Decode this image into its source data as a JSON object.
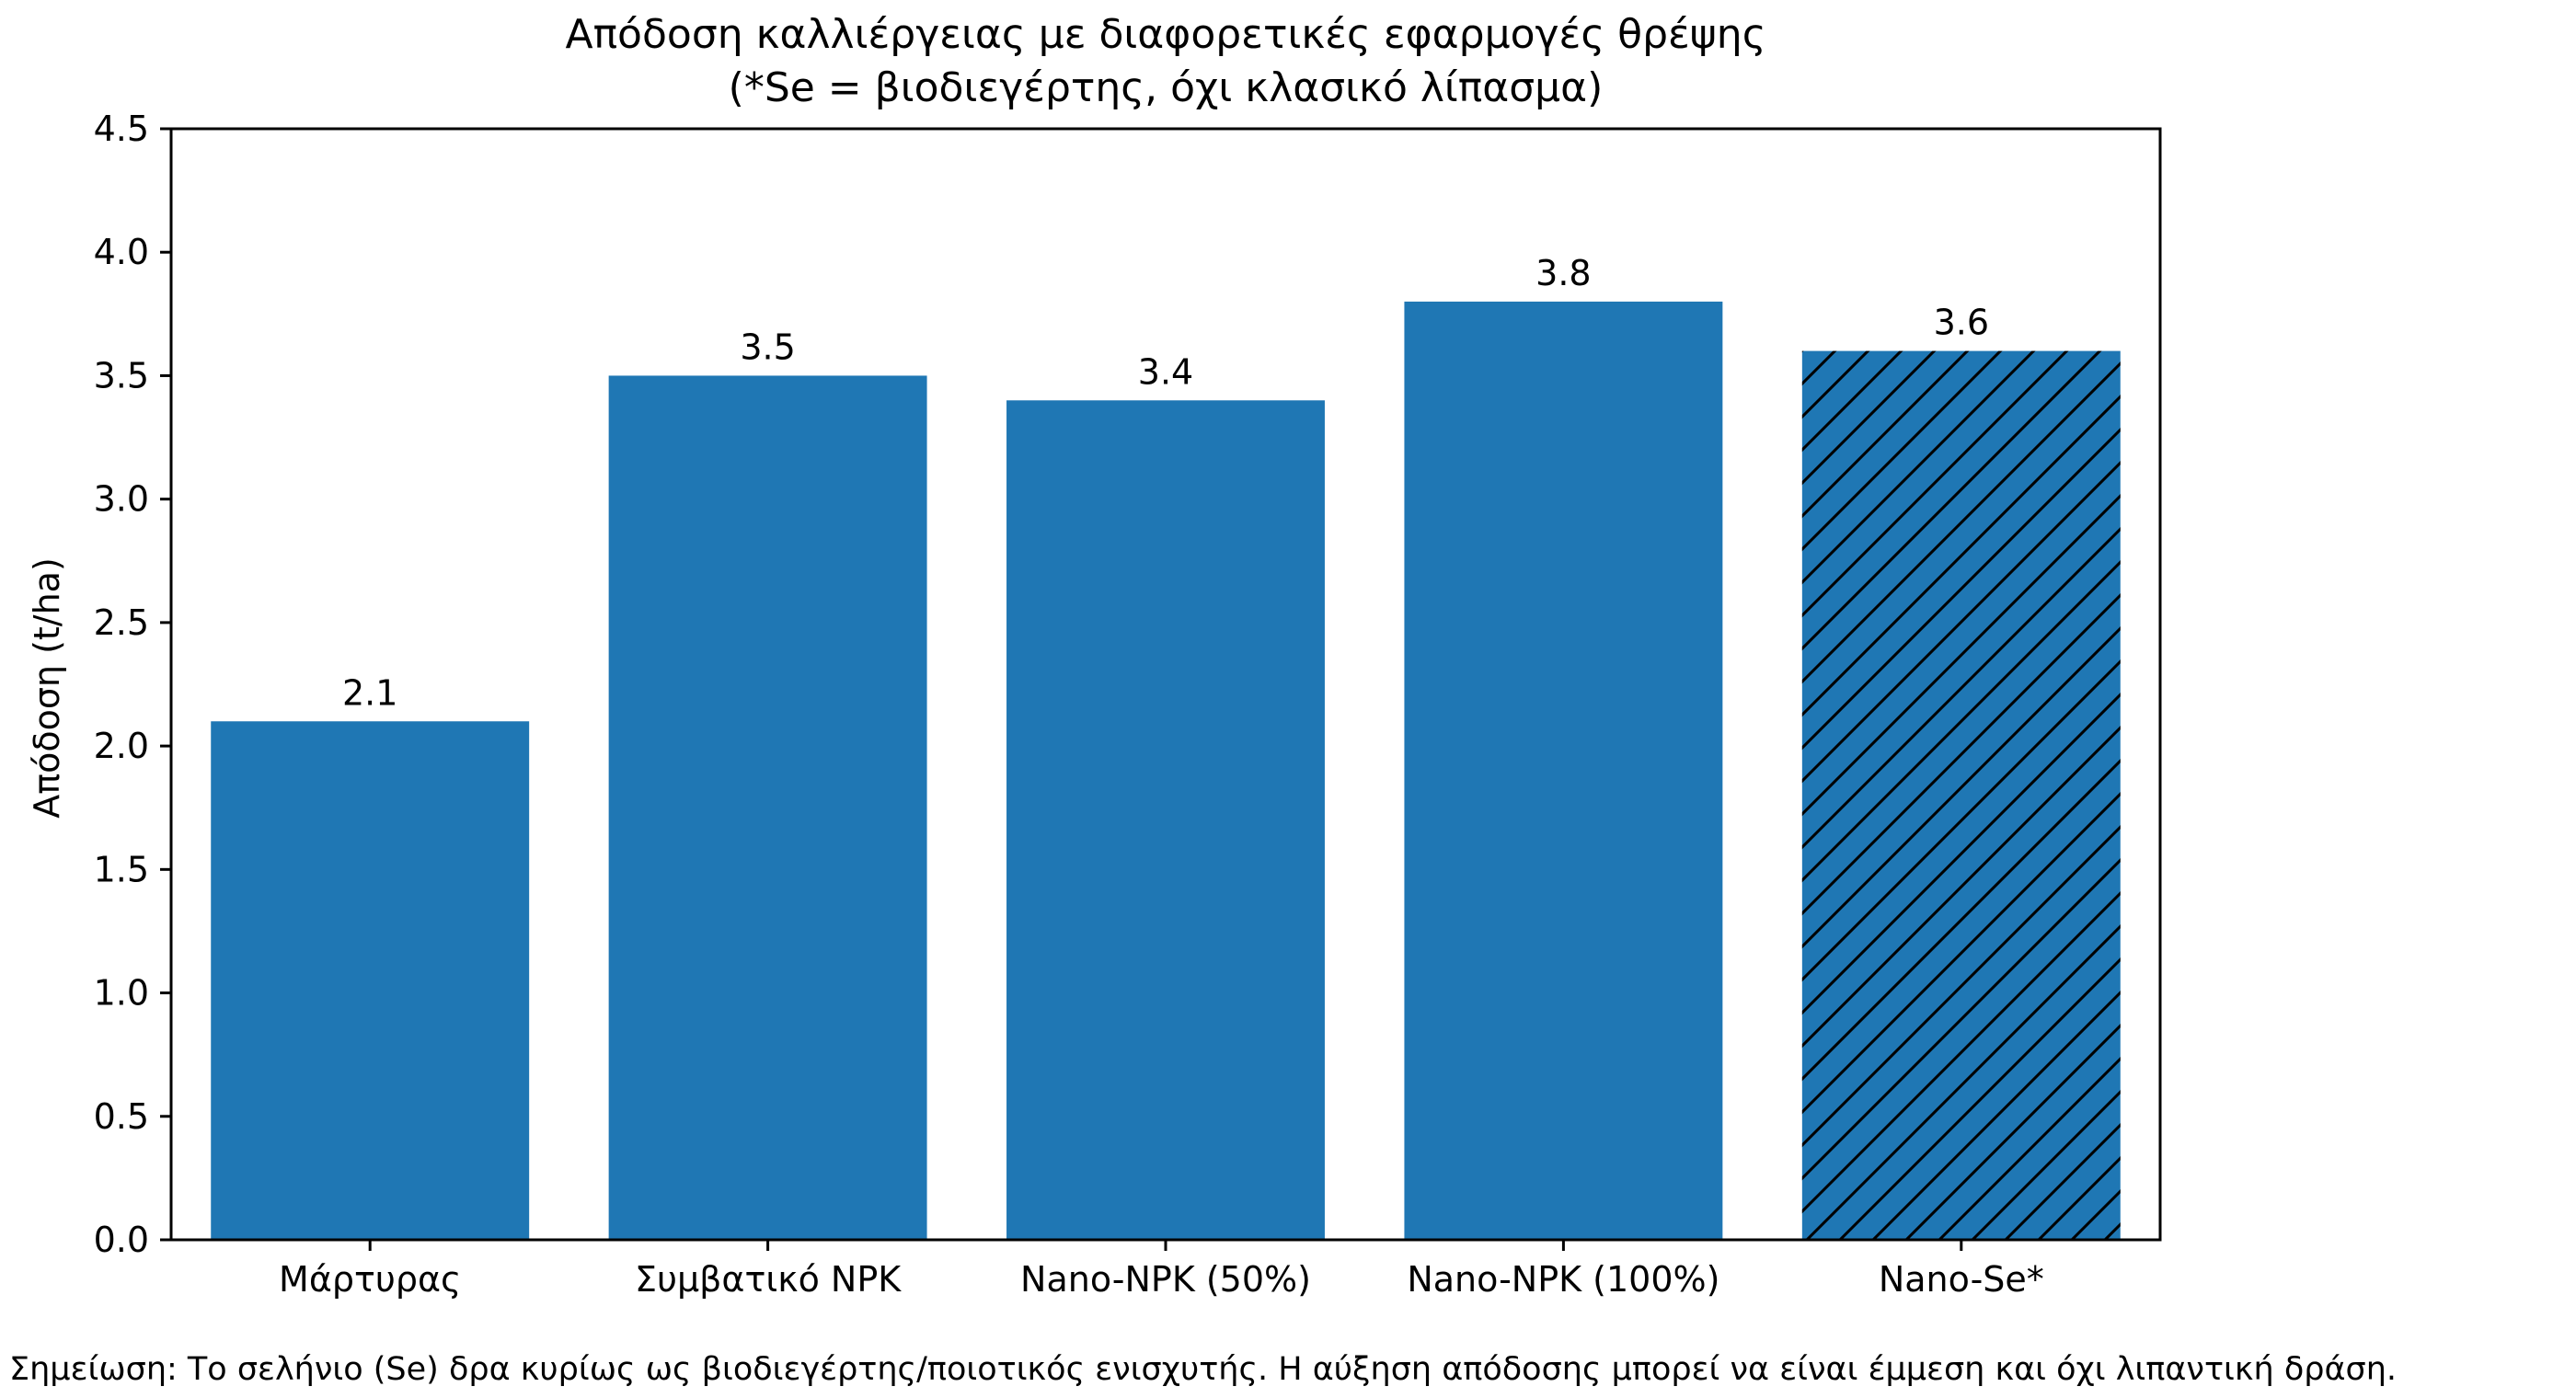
{
  "chart_data": {
    "type": "bar",
    "title": "Απόδοση καλλιέργειας με διαφορετικές εφαρμογές θρέψης",
    "subtitle": "(*Se = βιοδιεγέρτης, όχι κλασικό λίπασμα)",
    "xlabel": "",
    "ylabel": "Απόδοση (t/ha)",
    "categories": [
      "Μάρτυρας",
      "Συμβατικό NPK",
      "Nano-NPK (50%)",
      "Nano-NPK (100%)",
      "Nano-Se*"
    ],
    "values": [
      2.1,
      3.5,
      3.4,
      3.8,
      3.6
    ],
    "data_labels": [
      "2.1",
      "3.5",
      "3.4",
      "3.8",
      "3.6"
    ],
    "hatched": [
      false,
      false,
      false,
      false,
      true
    ],
    "ylim": [
      0,
      4.5
    ],
    "yticks": [
      0.0,
      0.5,
      1.0,
      1.5,
      2.0,
      2.5,
      3.0,
      3.5,
      4.0,
      4.5
    ],
    "ytick_labels": [
      "0.0",
      "0.5",
      "1.0",
      "1.5",
      "2.0",
      "2.5",
      "3.0",
      "3.5",
      "4.0",
      "4.5"
    ],
    "grid": false,
    "bar_color": "#1f77b4",
    "hatch_color": "#000000",
    "note": "Σημείωση: Το σελήνιο (Se) δρα κυρίως ως βιοδιεγέρτης/ποιοτικός ενισχυτής. Η αύξηση απόδοσης μπορεί να είναι έμμεση και όχι λιπαντική δράση."
  }
}
